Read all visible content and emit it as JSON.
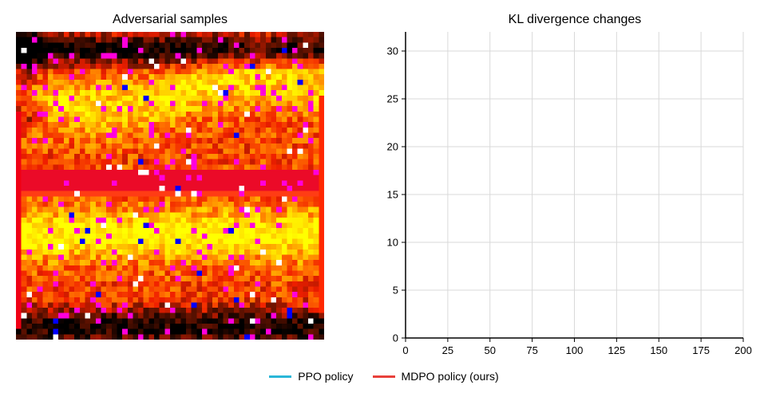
{
  "left_panel": {
    "title": "Adversarial samples",
    "image_description_icon": "adversarial-heatmap-image"
  },
  "chart_data": {
    "type": "line",
    "title": "KL divergence changes",
    "xlabel": "",
    "ylabel": "",
    "xlim": [
      0,
      200
    ],
    "ylim": [
      0,
      32
    ],
    "x_ticks": [
      "0",
      "25",
      "50",
      "75",
      "100",
      "125",
      "150",
      "175",
      "200"
    ],
    "y_ticks": [
      "0",
      "5",
      "10",
      "15",
      "20",
      "25",
      "30"
    ],
    "x_tick_values": [
      0,
      25,
      50,
      75,
      100,
      125,
      150,
      175,
      200
    ],
    "y_tick_values": [
      0,
      5,
      10,
      15,
      20,
      25,
      30
    ],
    "grid": true,
    "legend_placement": "bottom-center",
    "series": [
      {
        "name": "PPO policy",
        "color": "#29b6d8",
        "x": [],
        "y": []
      },
      {
        "name": "MDPO policy (ours)",
        "color": "#e8403a",
        "x": [],
        "y": []
      }
    ]
  },
  "legend": {
    "items": [
      {
        "label": "PPO policy",
        "color": "#29b6d8"
      },
      {
        "label": "MDPO policy (ours)",
        "color": "#e8403a"
      }
    ]
  }
}
